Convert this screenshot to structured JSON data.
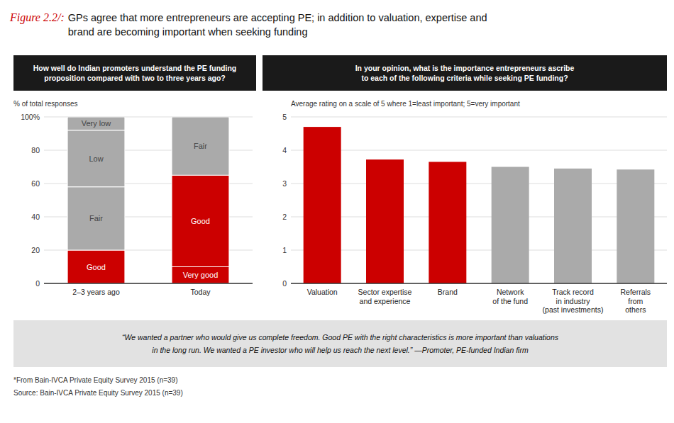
{
  "title": "Figure 2.2/:",
  "subtitle": " GPs agree that more entrepreneurs are accepting PE; in addition to valuation, expertise and\nbrand are becoming important when seeking funding",
  "annotations": [
    "“We wanted a partner who would give us complete freedom. Good PE with the right characteristics is more important than valuations\nin the long run. We wanted a PE investor who will help us reach the next level.” —Promoter, PE-funded Indian firm",
    "*From Bain-IVCA Private Equity Survey 2015 (n=39)",
    "Source: Bain-IVCA Private Equity Survey 2015 (n=39)"
  ],
  "chart_data": [
    {
      "type": "bar",
      "title": "How well do Indian promoters understand the PE funding\nproposition compared with two to three years ago?",
      "ylabel": "% of total responses",
      "stacked": true,
      "categories": [
        "2–3 years ago",
        "Today"
      ],
      "series": [
        {
          "name": "Very good",
          "color": "#cc0000",
          "values": [
            null,
            10
          ]
        },
        {
          "name": "Good",
          "color": "#cc0000",
          "values": [
            20,
            55
          ]
        },
        {
          "name": "Fair",
          "color": "#aaaaaa",
          "values": [
            38,
            35
          ]
        },
        {
          "name": "Low",
          "color": "#aaaaaa",
          "values": [
            34,
            null
          ]
        },
        {
          "name": "Very low",
          "color": "#aaaaaa",
          "values": [
            8,
            null
          ]
        }
      ],
      "ylim": [
        0,
        100
      ],
      "yticks": [
        0,
        20,
        40,
        60,
        80,
        {
          "value": 100,
          "label": "100%"
        }
      ],
      "grid": true
    },
    {
      "type": "bar",
      "title": "In your opinion, what is the importance entrepreneurs ascribe\nto each of the following criteria while seeking PE funding?",
      "ylabel": "Average rating on a scale of 5 where 1=least important; 5=very important",
      "categories": [
        "Valuation",
        "Sector expertise\nand experience",
        "Brand",
        "Network\nof the fund",
        "Track record\nin industry\n(past investments)",
        "Referrals\nfrom\nothers"
      ],
      "values": [
        4.7,
        3.72,
        3.65,
        3.5,
        3.45,
        3.42
      ],
      "colors": [
        "#cc0000",
        "#cc0000",
        "#cc0000",
        "#aaaaaa",
        "#aaaaaa",
        "#aaaaaa"
      ],
      "ylim": [
        0,
        5
      ],
      "yticks": [
        0,
        1,
        2,
        3,
        4,
        5
      ],
      "grid": true
    }
  ]
}
